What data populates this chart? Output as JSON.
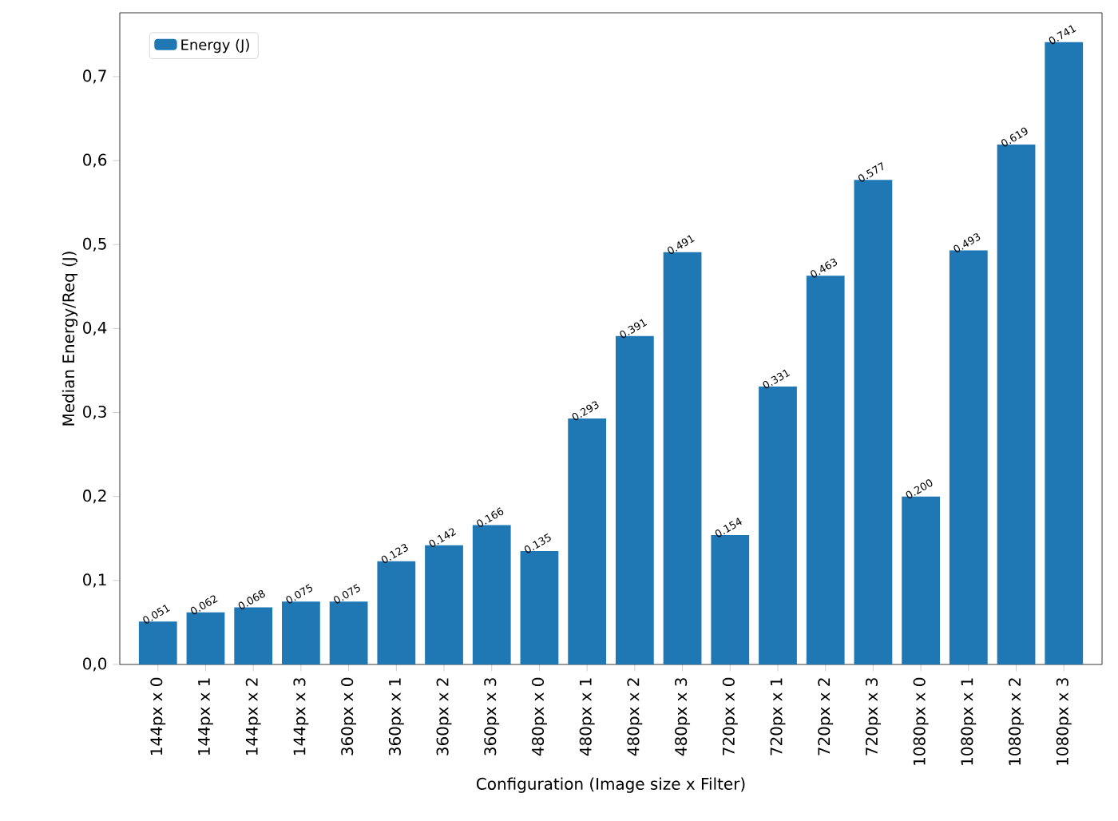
{
  "chart_data": {
    "type": "bar",
    "xlabel": "Configuration (Image size x Filter)",
    "ylabel": "Median Energy/Req (J)",
    "categories": [
      "144px x 0",
      "144px x 1",
      "144px x 2",
      "144px x 3",
      "360px x 0",
      "360px x 1",
      "360px x 2",
      "360px x 3",
      "480px x 0",
      "480px x 1",
      "480px x 2",
      "480px x 3",
      "720px x 0",
      "720px x 1",
      "720px x 2",
      "720px x 3",
      "1080px x 0",
      "1080px x 1",
      "1080px x 2",
      "1080px x 3"
    ],
    "series": [
      {
        "name": "Energy (J)",
        "color": "#1f77b4",
        "values": [
          0.051,
          0.062,
          0.068,
          0.075,
          0.075,
          0.123,
          0.142,
          0.166,
          0.135,
          0.293,
          0.391,
          0.491,
          0.154,
          0.331,
          0.463,
          0.577,
          0.2,
          0.493,
          0.619,
          0.741
        ]
      }
    ],
    "value_labels": [
      "0.051",
      "0.062",
      "0.068",
      "0.075",
      "0.075",
      "0.123",
      "0.142",
      "0.166",
      "0.135",
      "0.293",
      "0.391",
      "0.491",
      "0.154",
      "0.331",
      "0.463",
      "0.577",
      "0.200",
      "0.493",
      "0.619",
      "0.741"
    ],
    "ylim": [
      0,
      0.776
    ],
    "yticks": [
      {
        "value": 0,
        "label": "0,0"
      },
      {
        "value": 0.1,
        "label": "0,1"
      },
      {
        "value": 0.2,
        "label": "0,2"
      },
      {
        "value": 0.3,
        "label": "0,3"
      },
      {
        "value": 0.4,
        "label": "0,4"
      },
      {
        "value": 0.5,
        "label": "0,5"
      },
      {
        "value": 0.6,
        "label": "0,6"
      },
      {
        "value": 0.7,
        "label": "0,7"
      }
    ],
    "legend": "top left"
  }
}
